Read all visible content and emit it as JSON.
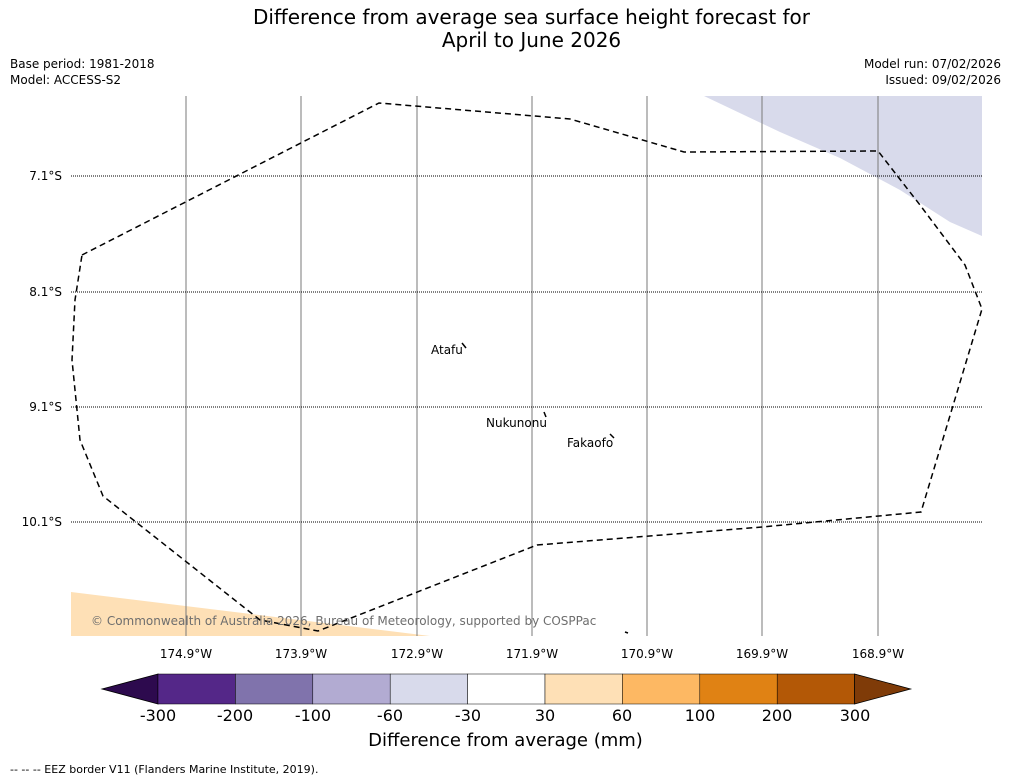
{
  "title": {
    "line1": "Difference from average sea surface height forecast for",
    "line2": "April to June 2026"
  },
  "meta": {
    "base_period": "Base period: 1981-2018",
    "model": "Model: ACCESS-S2",
    "model_run": "Model run: 07/02/2026",
    "issued": "Issued: 09/02/2026"
  },
  "map": {
    "latitude_labels": [
      "7.1°S",
      "8.1°S",
      "9.1°S",
      "10.1°S"
    ],
    "longitude_labels": [
      "174.9°W",
      "173.9°W",
      "172.9°W",
      "171.9°W",
      "170.9°W",
      "169.9°W",
      "168.9°W"
    ],
    "places": {
      "atafu": "Atafu",
      "nukunonu": "Nukunonu",
      "fakaofo": "Fakaofo"
    },
    "copyright": "© Commonwealth of Australia 2026, Bureau of Meteorology, supported by COSPPac"
  },
  "colorbar": {
    "ticks": [
      "-300",
      "-200",
      "-100",
      "-60",
      "-30",
      "30",
      "60",
      "100",
      "200",
      "300"
    ],
    "colors": [
      "#2d0a4e",
      "#542788",
      "#8073ac",
      "#b2abd2",
      "#d8daeb",
      "#ffffff",
      "#fee0b6",
      "#fdb863",
      "#e08214",
      "#b35806",
      "#7f3b08"
    ],
    "label": "Difference from average (mm)"
  },
  "footer": "--  --  -- EEZ border V11 (Flanders Marine Institute, 2019)."
}
